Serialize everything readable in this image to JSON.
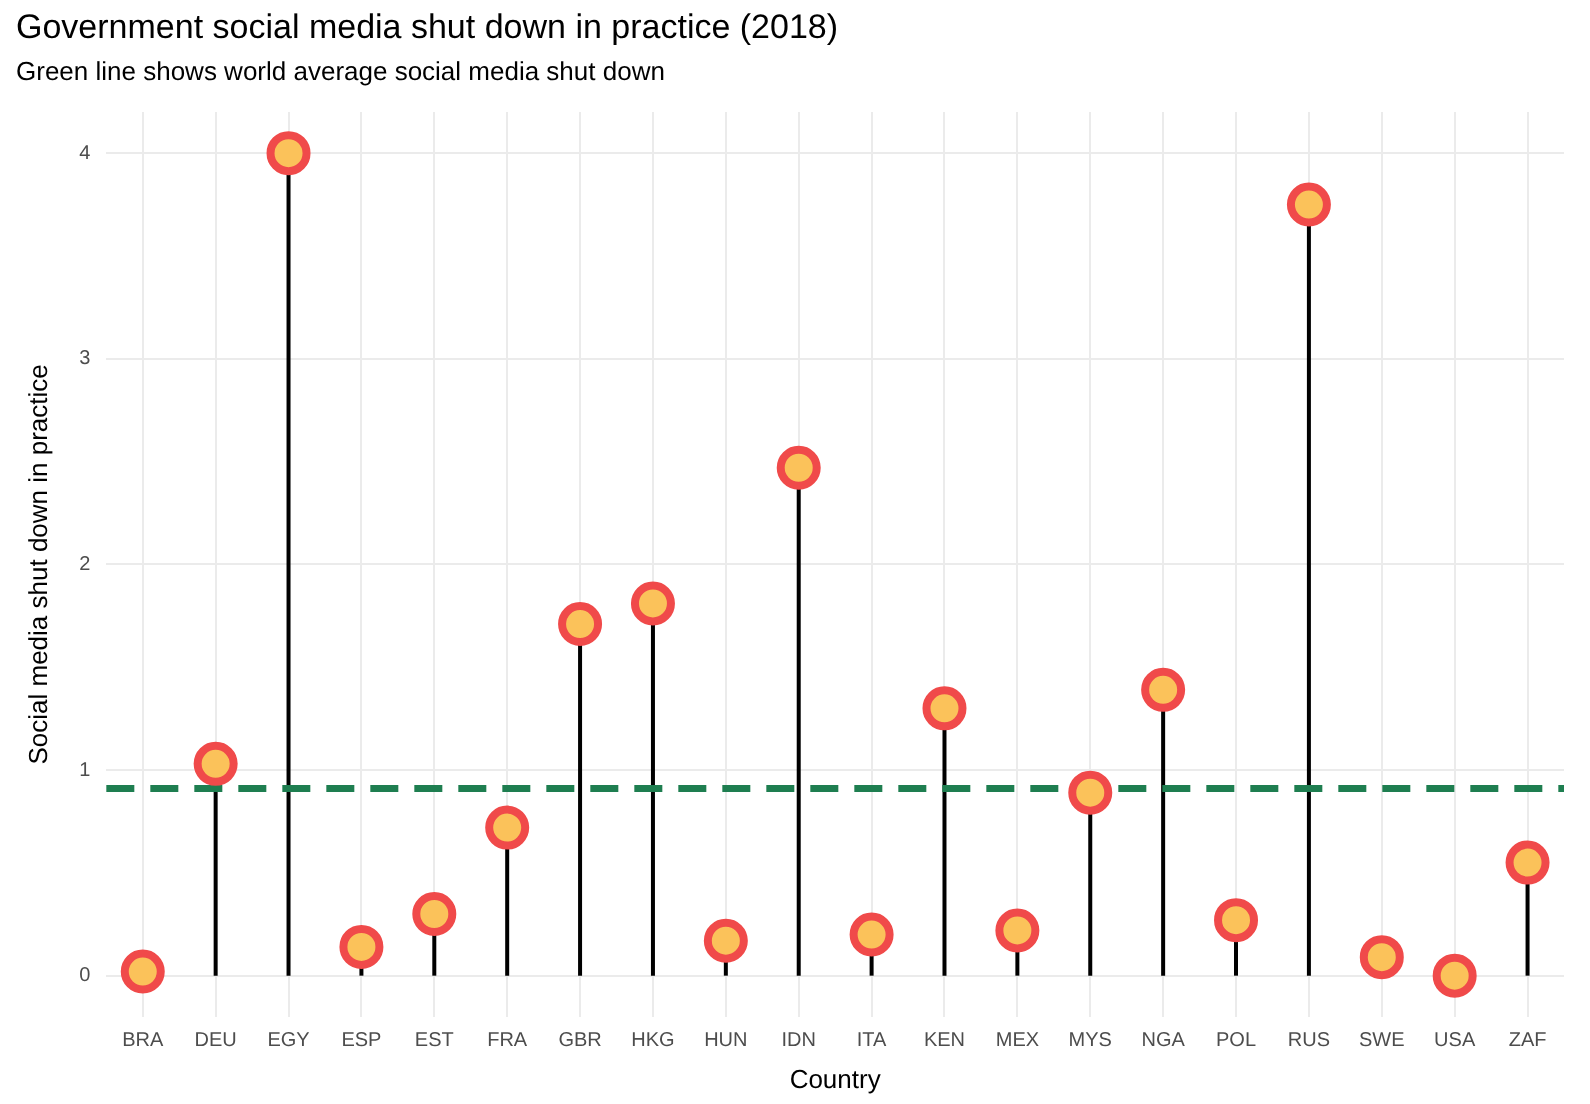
{
  "chart_data": {
    "type": "lollipop",
    "title": "Government social media shut down in practice (2018)",
    "subtitle": "Green line shows world average social media shut down",
    "xlabel": "Country",
    "ylabel": "Social media shut down in practice",
    "categories": [
      "BRA",
      "DEU",
      "EGY",
      "ESP",
      "EST",
      "FRA",
      "GBR",
      "HKG",
      "HUN",
      "IDN",
      "ITA",
      "KEN",
      "MEX",
      "MYS",
      "NGA",
      "POL",
      "RUS",
      "SWE",
      "USA",
      "ZAF"
    ],
    "series": [
      {
        "color": "#f04a4a",
        "values": [
          0.02,
          1.03,
          4.0,
          0.14,
          0.3,
          0.72,
          1.71,
          1.81,
          0.17,
          2.47,
          0.2,
          1.3,
          0.22,
          0.89,
          1.39,
          0.27,
          3.75,
          0.09,
          0.0,
          0.55
        ]
      }
    ],
    "ylim": [
      -0.2,
      4.2
    ],
    "yticks": [
      0,
      1,
      2,
      3,
      4
    ],
    "grid": true,
    "marker": "circle",
    "legend": false,
    "ref_lines": [
      {
        "axis": "y",
        "value": 0.91,
        "color": "#1e7e50",
        "line_style": "dashed"
      }
    ]
  }
}
